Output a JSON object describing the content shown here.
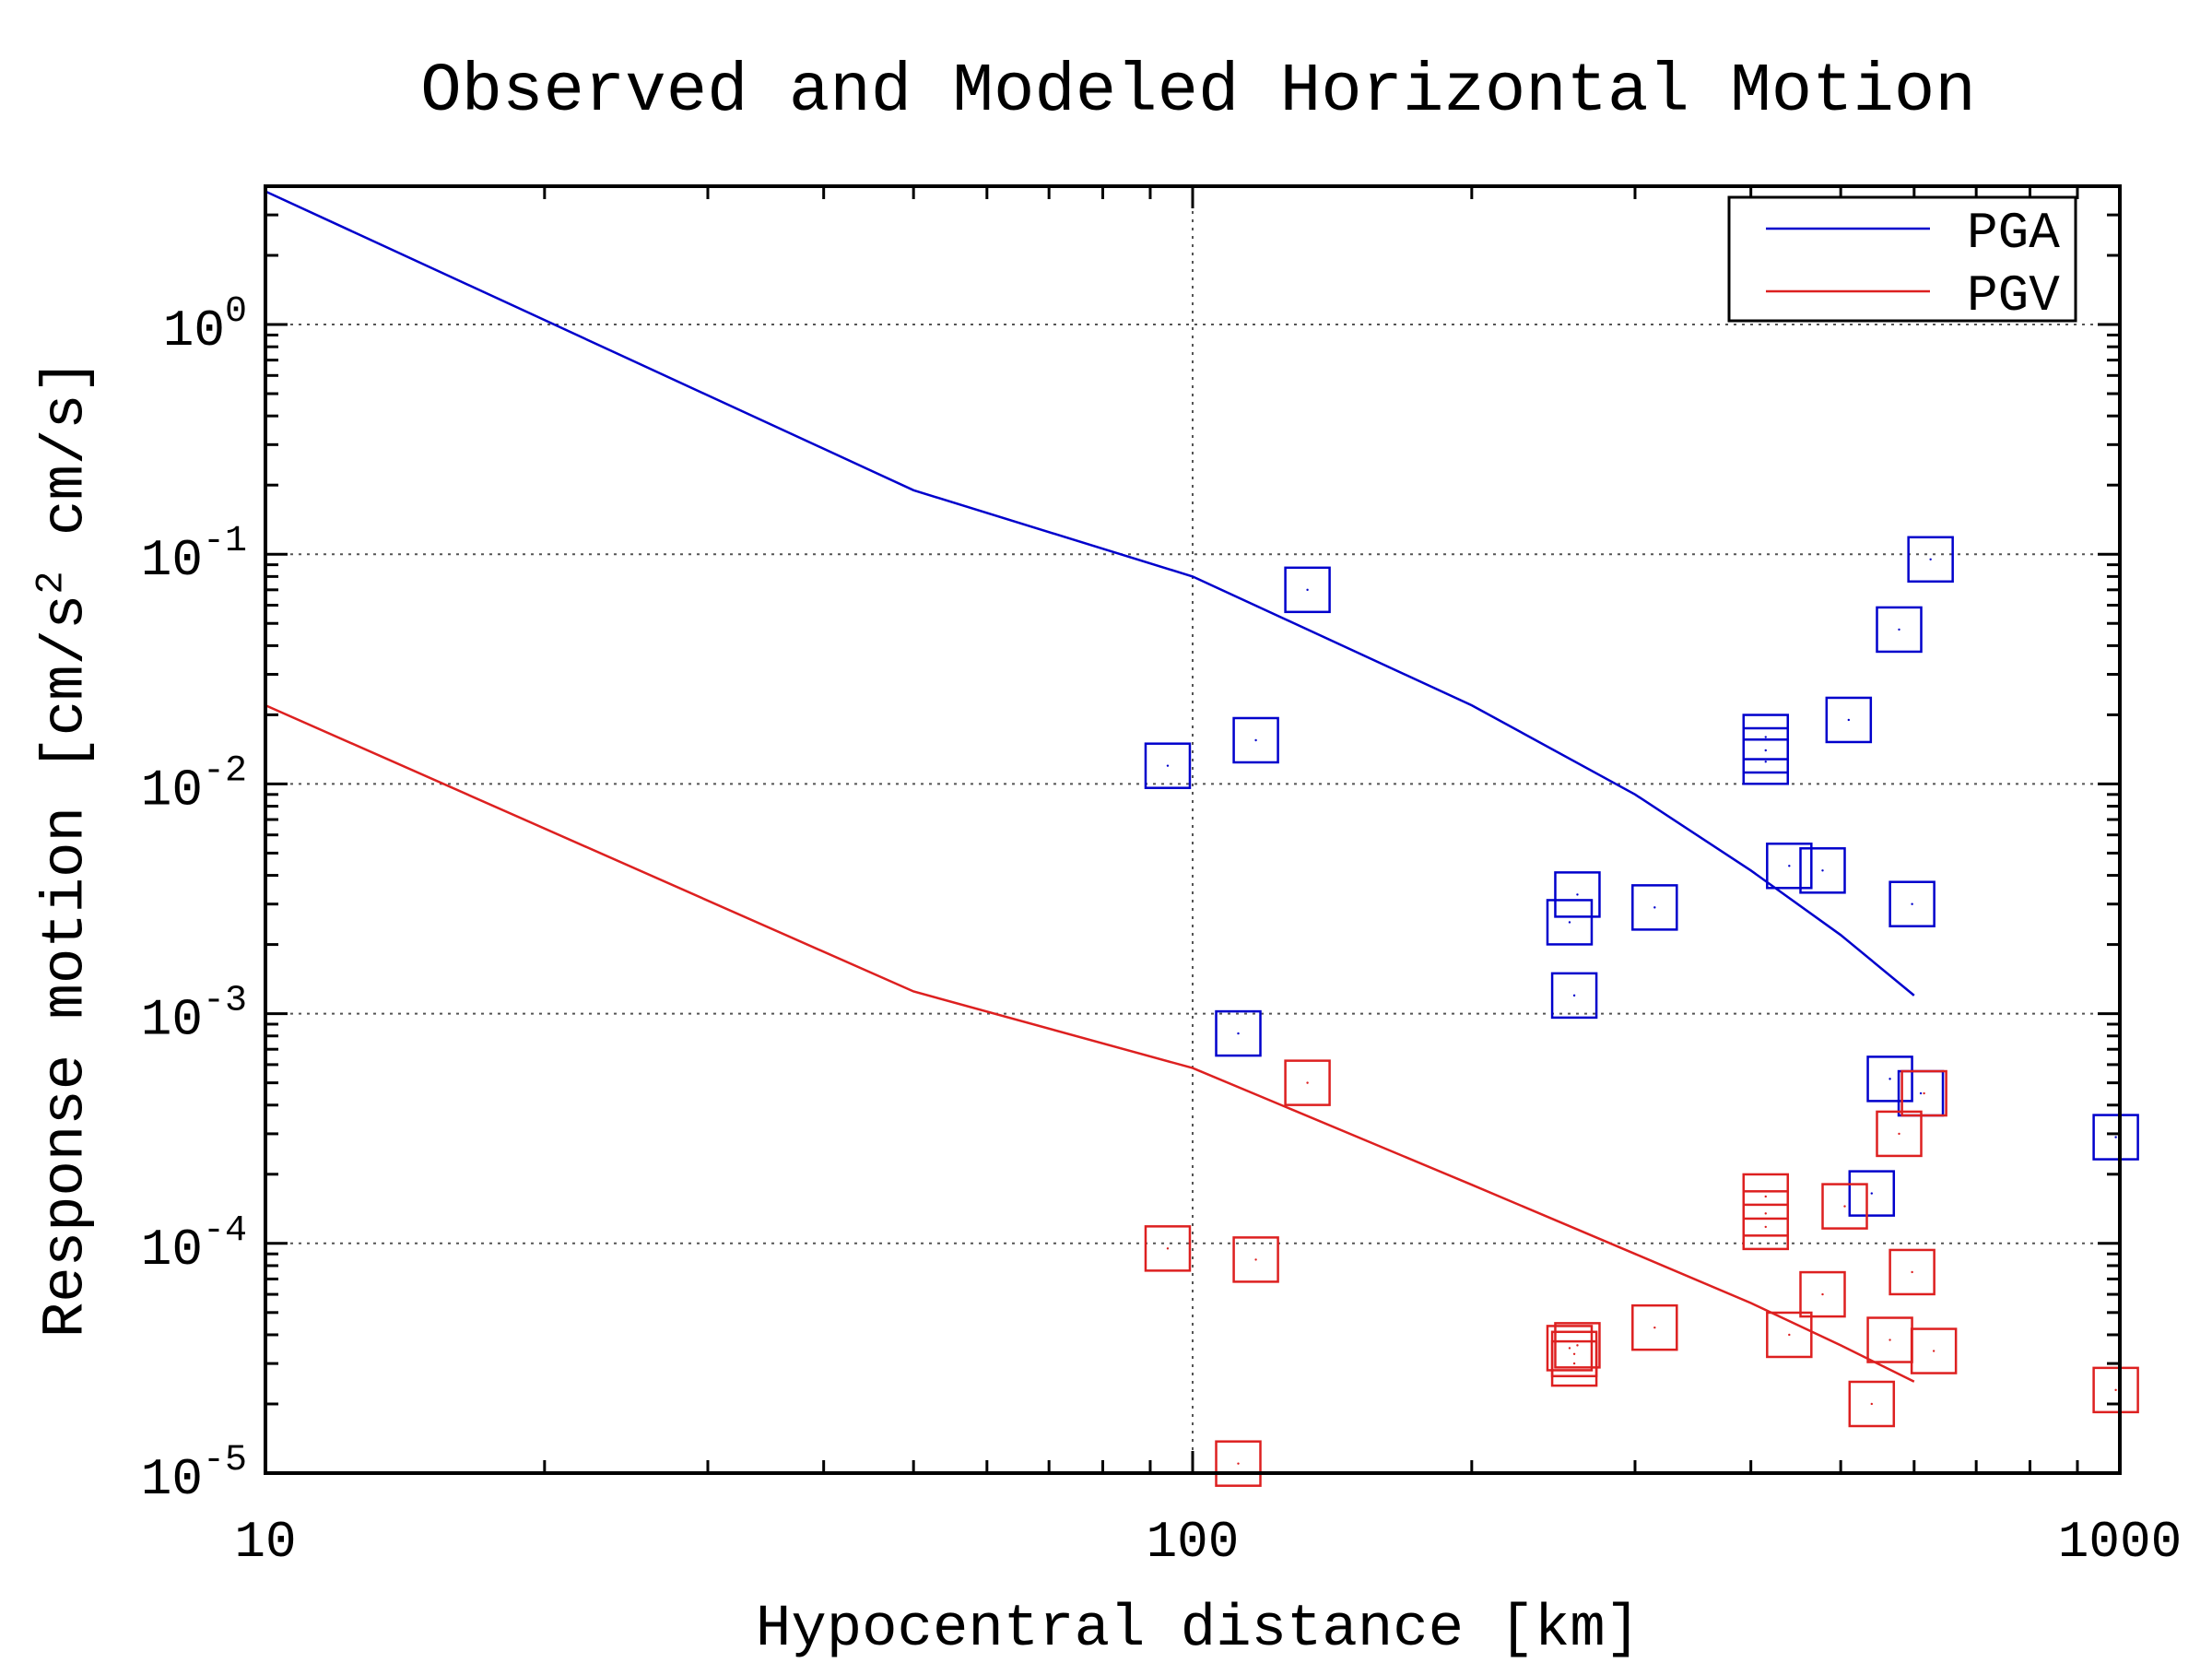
{
  "chart_data": {
    "type": "scatter",
    "title": "Observed and Modeled Horizontal Motion",
    "xlabel": "Hypocentral distance [km]",
    "ylabel_parts": [
      "Response motion [cm/s",
      "2",
      " cm/s]"
    ],
    "xscale": "log",
    "yscale": "log",
    "xlim": [
      10,
      1000
    ],
    "ylim": [
      1e-05,
      4
    ],
    "grid": true,
    "legend_position": "top-right",
    "x_ticks": [
      {
        "value": 10,
        "label": "10"
      },
      {
        "value": 100,
        "label": "100"
      },
      {
        "value": 1000,
        "label": "1000"
      }
    ],
    "y_ticks": [
      {
        "value": 1,
        "base": "10",
        "exp": "0"
      },
      {
        "value": 0.1,
        "base": "10",
        "exp": "-1"
      },
      {
        "value": 0.01,
        "base": "10",
        "exp": "-2"
      },
      {
        "value": 0.001,
        "base": "10",
        "exp": "-3"
      },
      {
        "value": 0.0001,
        "base": "10",
        "exp": "-4"
      },
      {
        "value": 1e-05,
        "base": "10",
        "exp": "-5"
      }
    ],
    "series": [
      {
        "name": "PGA",
        "color": "#0000cc",
        "model_line": [
          [
            10,
            3.8
          ],
          [
            50,
            0.19
          ],
          [
            100,
            0.08
          ],
          [
            200,
            0.022
          ],
          [
            300,
            0.009
          ],
          [
            400,
            0.0042
          ],
          [
            500,
            0.0022
          ],
          [
            600,
            0.0012
          ]
        ],
        "observed": [
          [
            94,
            0.012
          ],
          [
            133,
            0.07
          ],
          [
            117,
            0.0155
          ],
          [
            112,
            0.00082
          ],
          [
            255,
            0.0025
          ],
          [
            260,
            0.0033
          ],
          [
            258,
            0.0012
          ],
          [
            315,
            0.0029
          ],
          [
            415,
            0.016
          ],
          [
            415,
            0.014
          ],
          [
            415,
            0.0125
          ],
          [
            440,
            0.0044
          ],
          [
            478,
            0.0042
          ],
          [
            510,
            0.019
          ],
          [
            578,
            0.047
          ],
          [
            597,
            0.003
          ],
          [
            625,
            0.095
          ],
          [
            565,
            0.00052
          ],
          [
            610,
            0.00045
          ],
          [
            540,
            0.000165
          ],
          [
            990,
            0.00029
          ]
        ]
      },
      {
        "name": "PGV",
        "color": "#dd2020",
        "model_line": [
          [
            10,
            0.022
          ],
          [
            50,
            0.00125
          ],
          [
            100,
            0.00058
          ],
          [
            200,
            0.00018
          ],
          [
            300,
            9e-05
          ],
          [
            400,
            5.5e-05
          ],
          [
            500,
            3.6e-05
          ],
          [
            600,
            2.5e-05
          ]
        ],
        "observed": [
          [
            94,
            9.5e-05
          ],
          [
            133,
            0.0005
          ],
          [
            117,
            8.5e-05
          ],
          [
            112,
            1.1e-05
          ],
          [
            255,
            3.5e-05
          ],
          [
            260,
            3.6e-05
          ],
          [
            258,
            3.3e-05
          ],
          [
            258,
            3e-05
          ],
          [
            315,
            4.3e-05
          ],
          [
            415,
            0.00016
          ],
          [
            415,
            0.000135
          ],
          [
            415,
            0.000118
          ],
          [
            440,
            4e-05
          ],
          [
            478,
            6e-05
          ],
          [
            505,
            0.000145
          ],
          [
            578,
            0.0003
          ],
          [
            597,
            7.5e-05
          ],
          [
            565,
            3.8e-05
          ],
          [
            630,
            3.4e-05
          ],
          [
            615,
            0.00045
          ],
          [
            540,
            2e-05
          ],
          [
            990,
            2.3e-05
          ]
        ]
      }
    ]
  }
}
